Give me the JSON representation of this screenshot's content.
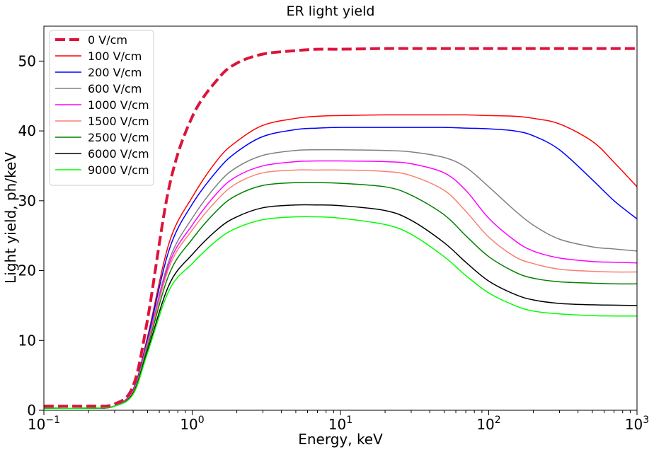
{
  "chart_data": {
    "type": "line",
    "title": "ER light yield",
    "xlabel": "Energy, keV",
    "ylabel": "Light yield, ph/keV",
    "xscale": "log",
    "xlim": [
      0.1,
      1000
    ],
    "ylim": [
      0,
      55
    ],
    "grid": false,
    "legend_position": "top-left",
    "x_ticks": [
      {
        "value": 0.1,
        "base": "10",
        "exp": "−1"
      },
      {
        "value": 1,
        "base": "10",
        "exp": "0"
      },
      {
        "value": 10,
        "base": "10",
        "exp": "1"
      },
      {
        "value": 100,
        "base": "10",
        "exp": "2"
      },
      {
        "value": 1000,
        "base": "10",
        "exp": "3"
      }
    ],
    "y_ticks": [
      {
        "value": 0,
        "label": "0"
      },
      {
        "value": 10,
        "label": "10"
      },
      {
        "value": 20,
        "label": "20"
      },
      {
        "value": 30,
        "label": "30"
      },
      {
        "value": 40,
        "label": "40"
      },
      {
        "value": 50,
        "label": "50"
      }
    ],
    "x": [
      0.1,
      0.2,
      0.3,
      0.4,
      0.5,
      0.7,
      1,
      1.5,
      2,
      3,
      5,
      7,
      10,
      20,
      30,
      50,
      70,
      100,
      150,
      200,
      300,
      500,
      700,
      1000
    ],
    "series": [
      {
        "name": "0 V/cm",
        "color": "#dc143c",
        "style": "dashed",
        "values": [
          0.6,
          0.6,
          0.9,
          3.5,
          13.0,
          32.0,
          42.0,
          47.5,
          49.7,
          51.0,
          51.5,
          51.7,
          51.7,
          51.8,
          51.8,
          51.8,
          51.8,
          51.8,
          51.8,
          51.8,
          51.8,
          51.8,
          51.8,
          51.8
        ]
      },
      {
        "name": "100 V/cm",
        "color": "#ff0000",
        "style": "solid",
        "values": [
          0.3,
          0.3,
          0.6,
          3.0,
          10.5,
          24.0,
          30.5,
          36.0,
          38.5,
          40.8,
          41.8,
          42.1,
          42.2,
          42.3,
          42.3,
          42.3,
          42.3,
          42.2,
          42.1,
          41.8,
          41.0,
          38.5,
          35.5,
          32.0
        ]
      },
      {
        "name": "200 V/cm",
        "color": "#0000ff",
        "style": "solid",
        "values": [
          0.3,
          0.3,
          0.6,
          2.9,
          10.2,
          23.0,
          29.5,
          34.5,
          37.0,
          39.2,
          40.2,
          40.4,
          40.5,
          40.5,
          40.5,
          40.5,
          40.4,
          40.3,
          40.0,
          39.3,
          37.3,
          33.0,
          30.0,
          27.4
        ]
      },
      {
        "name": "600 V/cm",
        "color": "#808080",
        "style": "solid",
        "values": [
          0.3,
          0.3,
          0.6,
          2.8,
          9.8,
          21.5,
          27.5,
          32.5,
          34.8,
          36.5,
          37.2,
          37.3,
          37.3,
          37.2,
          37.0,
          36.2,
          34.8,
          32.0,
          28.6,
          26.5,
          24.5,
          23.4,
          23.1,
          22.8
        ]
      },
      {
        "name": "1000 V/cm",
        "color": "#ff00ff",
        "style": "solid",
        "values": [
          0.3,
          0.3,
          0.6,
          2.7,
          9.5,
          21.0,
          26.5,
          31.3,
          33.5,
          35.0,
          35.6,
          35.7,
          35.7,
          35.6,
          35.3,
          34.0,
          31.5,
          27.5,
          24.3,
          22.8,
          21.8,
          21.3,
          21.2,
          21.1
        ]
      },
      {
        "name": "1500 V/cm",
        "color": "#fa8072",
        "style": "solid",
        "values": [
          0.3,
          0.3,
          0.6,
          2.6,
          9.3,
          20.5,
          25.8,
          30.3,
          32.5,
          34.0,
          34.4,
          34.4,
          34.4,
          34.2,
          33.6,
          31.5,
          28.5,
          24.8,
          22.0,
          21.0,
          20.2,
          19.9,
          19.8,
          19.8
        ]
      },
      {
        "name": "2500 V/cm",
        "color": "#008000",
        "style": "solid",
        "values": [
          0.3,
          0.3,
          0.6,
          2.5,
          9.0,
          19.5,
          24.5,
          28.8,
          30.8,
          32.2,
          32.6,
          32.6,
          32.5,
          32.0,
          30.8,
          28.0,
          25.0,
          22.0,
          19.8,
          18.9,
          18.4,
          18.2,
          18.1,
          18.1
        ]
      },
      {
        "name": "6000 V/cm",
        "color": "#000000",
        "style": "solid",
        "values": [
          0.3,
          0.3,
          0.6,
          2.4,
          8.5,
          18.0,
          22.3,
          26.0,
          27.7,
          29.0,
          29.4,
          29.4,
          29.3,
          28.6,
          27.2,
          24.0,
          21.2,
          18.5,
          16.6,
          15.8,
          15.3,
          15.1,
          15.05,
          15.0
        ]
      },
      {
        "name": "9000 V/cm",
        "color": "#00ff00",
        "style": "solid",
        "values": [
          0.3,
          0.3,
          0.6,
          2.3,
          8.2,
          17.2,
          21.0,
          24.5,
          26.1,
          27.3,
          27.7,
          27.7,
          27.5,
          26.6,
          25.2,
          22.0,
          19.3,
          16.8,
          15.0,
          14.2,
          13.8,
          13.55,
          13.5,
          13.5
        ]
      }
    ]
  }
}
